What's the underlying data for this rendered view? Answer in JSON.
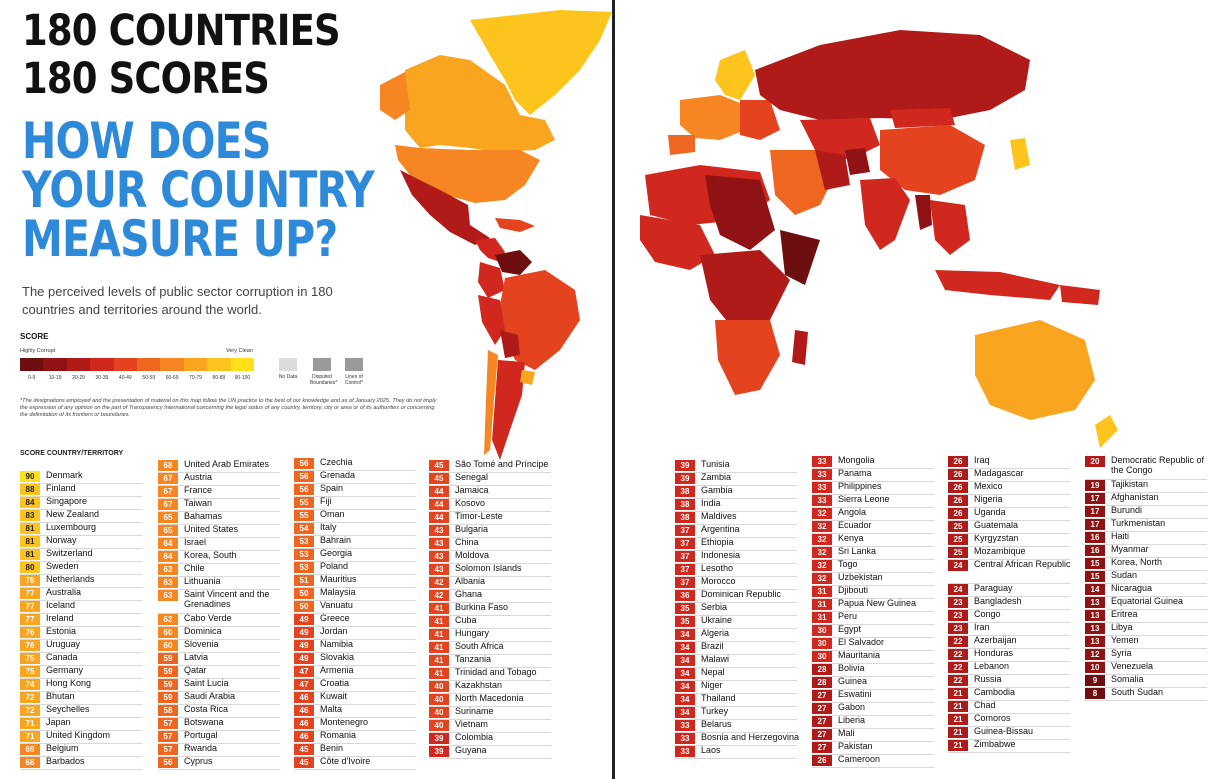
{
  "header": {
    "title_line1": "180 COUNTRIES",
    "title_line2": "180 SCORES",
    "question_line1": "HOW DOES",
    "question_line2": "YOUR COUNTRY",
    "question_line3": "MEASURE UP?",
    "subtitle": "The perceived levels of public sector corruption in 180 countries and territories around the world."
  },
  "legend": {
    "title": "SCORE",
    "low_label": "Highly Corrupt",
    "high_label": "Very Clean",
    "bins": [
      {
        "label": "0-9",
        "color": "#6d0e10"
      },
      {
        "label": "10-19",
        "color": "#8f1214"
      },
      {
        "label": "20-29",
        "color": "#b01a18"
      },
      {
        "label": "30-39",
        "color": "#d0281e"
      },
      {
        "label": "40-49",
        "color": "#e3441f"
      },
      {
        "label": "50-59",
        "color": "#ee6620"
      },
      {
        "label": "60-69",
        "color": "#f58621"
      },
      {
        "label": "70-79",
        "color": "#faa51f"
      },
      {
        "label": "80-89",
        "color": "#fcc41c"
      },
      {
        "label": "90-100",
        "color": "#ffe01a"
      }
    ],
    "no_data_label": "No Data",
    "disputed_label": "Disputed Boundaries*",
    "lines_label": "Lines of Control*",
    "no_data_color": "#dcdcdc",
    "disputed_color": "#9a9a9a"
  },
  "disclaimer": "*The designations employed and the presentation of material on this map follow the UN practice to the best of our knowledge and as of January 2025. They do not imply the expression of any opinion on the part of Transparency International concerning the legal status of any country, territory, city or area or of its authorities or concerning the delimitation of its frontiers or boundaries.",
  "table_header": "SCORE COUNTRY/TERRITORY",
  "columns": [
    [
      {
        "score": 90,
        "name": "Denmark"
      },
      {
        "score": 88,
        "name": "Finland"
      },
      {
        "score": 84,
        "name": "Singapore"
      },
      {
        "score": 83,
        "name": "New Zealand"
      },
      {
        "score": 81,
        "name": "Luxembourg"
      },
      {
        "score": 81,
        "name": "Norway"
      },
      {
        "score": 81,
        "name": "Switzerland"
      },
      {
        "score": 80,
        "name": "Sweden"
      },
      {
        "score": 78,
        "name": "Netherlands"
      },
      {
        "score": 77,
        "name": "Australia"
      },
      {
        "score": 77,
        "name": "Iceland"
      },
      {
        "score": 77,
        "name": "Ireland"
      },
      {
        "score": 76,
        "name": "Estonia"
      },
      {
        "score": 76,
        "name": "Uruguay"
      },
      {
        "score": 75,
        "name": "Canada"
      },
      {
        "score": 75,
        "name": "Germany"
      },
      {
        "score": 74,
        "name": "Hong Kong"
      },
      {
        "score": 72,
        "name": "Bhutan"
      },
      {
        "score": 72,
        "name": "Seychelles"
      },
      {
        "score": 71,
        "name": "Japan"
      },
      {
        "score": 71,
        "name": "United Kingdom"
      },
      {
        "score": 69,
        "name": "Belgium"
      },
      {
        "score": 68,
        "name": "Barbados"
      }
    ],
    [
      {
        "score": 68,
        "name": "United Arab Emirates"
      },
      {
        "score": 67,
        "name": "Austria"
      },
      {
        "score": 67,
        "name": "France"
      },
      {
        "score": 67,
        "name": "Taiwan"
      },
      {
        "score": 65,
        "name": "Bahamas"
      },
      {
        "score": 65,
        "name": "United States"
      },
      {
        "score": 64,
        "name": "Israel"
      },
      {
        "score": 64,
        "name": "Korea, South"
      },
      {
        "score": 63,
        "name": "Chile"
      },
      {
        "score": 63,
        "name": "Lithuania"
      },
      {
        "score": 63,
        "name": "Saint Vincent and the Grenadines"
      },
      {
        "score": 62,
        "name": "Cabo Verde"
      },
      {
        "score": 60,
        "name": "Dominica"
      },
      {
        "score": 60,
        "name": "Slovenia"
      },
      {
        "score": 59,
        "name": "Latvia"
      },
      {
        "score": 59,
        "name": "Qatar"
      },
      {
        "score": 59,
        "name": "Saint Lucia"
      },
      {
        "score": 59,
        "name": "Saudi Arabia"
      },
      {
        "score": 58,
        "name": "Costa Rica"
      },
      {
        "score": 57,
        "name": "Botswana"
      },
      {
        "score": 57,
        "name": "Portugal"
      },
      {
        "score": 57,
        "name": "Rwanda"
      },
      {
        "score": 56,
        "name": "Cyprus"
      }
    ],
    [
      {
        "score": 56,
        "name": "Czechia"
      },
      {
        "score": 56,
        "name": "Grenada"
      },
      {
        "score": 56,
        "name": "Spain"
      },
      {
        "score": 55,
        "name": "Fiji"
      },
      {
        "score": 55,
        "name": "Oman"
      },
      {
        "score": 54,
        "name": "Italy"
      },
      {
        "score": 53,
        "name": "Bahrain"
      },
      {
        "score": 53,
        "name": "Georgia"
      },
      {
        "score": 53,
        "name": "Poland"
      },
      {
        "score": 51,
        "name": "Mauritius"
      },
      {
        "score": 50,
        "name": "Malaysia"
      },
      {
        "score": 50,
        "name": "Vanuatu"
      },
      {
        "score": 49,
        "name": "Greece"
      },
      {
        "score": 49,
        "name": "Jordan"
      },
      {
        "score": 49,
        "name": "Namibia"
      },
      {
        "score": 49,
        "name": "Slovakia"
      },
      {
        "score": 47,
        "name": "Armenia"
      },
      {
        "score": 47,
        "name": "Croatia"
      },
      {
        "score": 46,
        "name": "Kuwait"
      },
      {
        "score": 46,
        "name": "Malta"
      },
      {
        "score": 46,
        "name": "Montenegro"
      },
      {
        "score": 46,
        "name": "Romania"
      },
      {
        "score": 45,
        "name": "Benin"
      },
      {
        "score": 45,
        "name": "Côte d'Ivoire"
      }
    ],
    [
      {
        "score": 45,
        "name": "São Tomé and Príncipe"
      },
      {
        "score": 45,
        "name": "Senegal"
      },
      {
        "score": 44,
        "name": "Jamaica"
      },
      {
        "score": 44,
        "name": "Kosovo"
      },
      {
        "score": 44,
        "name": "Timor-Leste"
      },
      {
        "score": 43,
        "name": "Bulgaria"
      },
      {
        "score": 43,
        "name": "China"
      },
      {
        "score": 43,
        "name": "Moldova"
      },
      {
        "score": 43,
        "name": "Solomon Islands"
      },
      {
        "score": 42,
        "name": "Albania"
      },
      {
        "score": 42,
        "name": "Ghana"
      },
      {
        "score": 41,
        "name": "Burkina Faso"
      },
      {
        "score": 41,
        "name": "Cuba"
      },
      {
        "score": 41,
        "name": "Hungary"
      },
      {
        "score": 41,
        "name": "South Africa"
      },
      {
        "score": 41,
        "name": "Tanzania"
      },
      {
        "score": 41,
        "name": "Trinidad and Tobago"
      },
      {
        "score": 40,
        "name": "Kazakhstan"
      },
      {
        "score": 40,
        "name": "North Macedonia"
      },
      {
        "score": 40,
        "name": "Suriname"
      },
      {
        "score": 40,
        "name": "Vietnam"
      },
      {
        "score": 39,
        "name": "Colombia"
      },
      {
        "score": 39,
        "name": "Guyana"
      }
    ],
    [
      {
        "score": 39,
        "name": "Tunisia"
      },
      {
        "score": 39,
        "name": "Zambia"
      },
      {
        "score": 38,
        "name": "Gambia"
      },
      {
        "score": 38,
        "name": "India"
      },
      {
        "score": 38,
        "name": "Maldives"
      },
      {
        "score": 37,
        "name": "Argentina"
      },
      {
        "score": 37,
        "name": "Ethiopia"
      },
      {
        "score": 37,
        "name": "Indonesia"
      },
      {
        "score": 37,
        "name": "Lesotho"
      },
      {
        "score": 37,
        "name": "Morocco"
      },
      {
        "score": 36,
        "name": "Dominican Republic"
      },
      {
        "score": 35,
        "name": "Serbia"
      },
      {
        "score": 35,
        "name": "Ukraine"
      },
      {
        "score": 34,
        "name": "Algeria"
      },
      {
        "score": 34,
        "name": "Brazil"
      },
      {
        "score": 34,
        "name": "Malawi"
      },
      {
        "score": 34,
        "name": "Nepal"
      },
      {
        "score": 34,
        "name": "Niger"
      },
      {
        "score": 34,
        "name": "Thailand"
      },
      {
        "score": 34,
        "name": "Turkey"
      },
      {
        "score": 33,
        "name": "Belarus"
      },
      {
        "score": 33,
        "name": "Bosnia and Herzegovina"
      },
      {
        "score": 33,
        "name": "Laos"
      }
    ],
    [
      {
        "score": 33,
        "name": "Mongolia"
      },
      {
        "score": 33,
        "name": "Panama"
      },
      {
        "score": 33,
        "name": "Philippines"
      },
      {
        "score": 33,
        "name": "Sierra Leone"
      },
      {
        "score": 32,
        "name": "Angola"
      },
      {
        "score": 32,
        "name": "Ecuador"
      },
      {
        "score": 32,
        "name": "Kenya"
      },
      {
        "score": 32,
        "name": "Sri Lanka"
      },
      {
        "score": 32,
        "name": "Togo"
      },
      {
        "score": 32,
        "name": "Uzbekistan"
      },
      {
        "score": 31,
        "name": "Djibouti"
      },
      {
        "score": 31,
        "name": "Papua New Guinea"
      },
      {
        "score": 31,
        "name": "Peru"
      },
      {
        "score": 30,
        "name": "Egypt"
      },
      {
        "score": 30,
        "name": "El Salvador"
      },
      {
        "score": 30,
        "name": "Mauritania"
      },
      {
        "score": 28,
        "name": "Bolivia"
      },
      {
        "score": 28,
        "name": "Guinea"
      },
      {
        "score": 27,
        "name": "Eswatini"
      },
      {
        "score": 27,
        "name": "Gabon"
      },
      {
        "score": 27,
        "name": "Liberia"
      },
      {
        "score": 27,
        "name": "Mali"
      },
      {
        "score": 27,
        "name": "Pakistan"
      },
      {
        "score": 26,
        "name": "Cameroon"
      }
    ],
    [
      {
        "score": 26,
        "name": "Iraq"
      },
      {
        "score": 26,
        "name": "Madagascar"
      },
      {
        "score": 26,
        "name": "Mexico"
      },
      {
        "score": 26,
        "name": "Nigeria"
      },
      {
        "score": 26,
        "name": "Uganda"
      },
      {
        "score": 25,
        "name": "Guatemala"
      },
      {
        "score": 25,
        "name": "Kyrgyzstan"
      },
      {
        "score": 25,
        "name": "Mozambique"
      },
      {
        "score": 24,
        "name": "Central African Republic"
      },
      {
        "score": 24,
        "name": "Paraguay"
      },
      {
        "score": 23,
        "name": "Bangladesh"
      },
      {
        "score": 23,
        "name": "Congo"
      },
      {
        "score": 23,
        "name": "Iran"
      },
      {
        "score": 22,
        "name": "Azerbaijan"
      },
      {
        "score": 22,
        "name": "Honduras"
      },
      {
        "score": 22,
        "name": "Lebanon"
      },
      {
        "score": 22,
        "name": "Russia"
      },
      {
        "score": 21,
        "name": "Cambodia"
      },
      {
        "score": 21,
        "name": "Chad"
      },
      {
        "score": 21,
        "name": "Comoros"
      },
      {
        "score": 21,
        "name": "Guinea-Bissau"
      },
      {
        "score": 21,
        "name": "Zimbabwe"
      }
    ],
    [
      {
        "score": 20,
        "name": "Democratic Republic of the Congo"
      },
      {
        "score": 19,
        "name": "Tajikistan"
      },
      {
        "score": 17,
        "name": "Afghanistan"
      },
      {
        "score": 17,
        "name": "Burundi"
      },
      {
        "score": 17,
        "name": "Turkmenistan"
      },
      {
        "score": 16,
        "name": "Haiti"
      },
      {
        "score": 16,
        "name": "Myanmar"
      },
      {
        "score": 15,
        "name": "Korea, North"
      },
      {
        "score": 15,
        "name": "Sudan"
      },
      {
        "score": 14,
        "name": "Nicaragua"
      },
      {
        "score": 13,
        "name": "Equatorial Guinea"
      },
      {
        "score": 13,
        "name": "Eritrea"
      },
      {
        "score": 13,
        "name": "Libya"
      },
      {
        "score": 13,
        "name": "Yemen"
      },
      {
        "score": 12,
        "name": "Syria"
      },
      {
        "score": 10,
        "name": "Venezuela"
      },
      {
        "score": 9,
        "name": "Somalia"
      },
      {
        "score": 8,
        "name": "South Sudan"
      }
    ]
  ],
  "map_colors": {
    "ocean": "#ffffff",
    "no_data": "#dcdcdc"
  }
}
